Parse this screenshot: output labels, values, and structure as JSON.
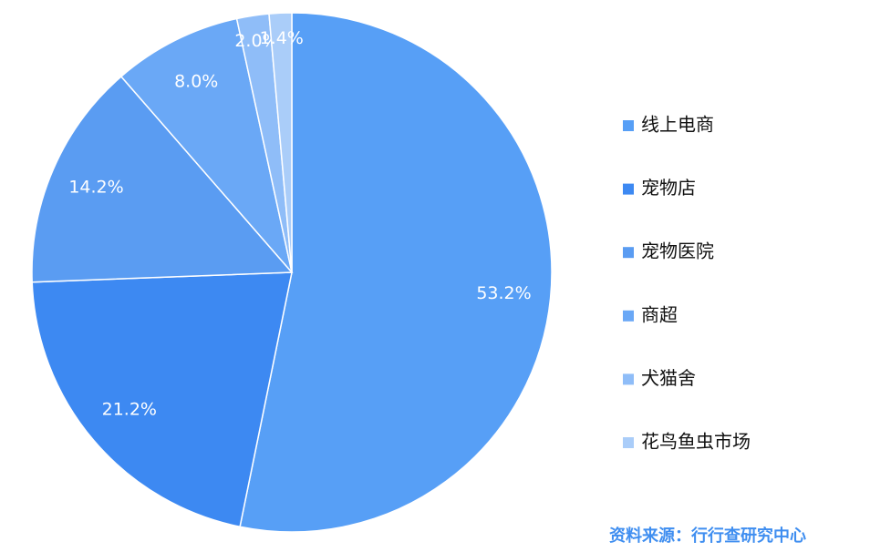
{
  "chart_data": {
    "type": "pie",
    "categories": [
      "线上电商",
      "宠物店",
      "宠物医院",
      "商超",
      "犬猫舍",
      "花鸟鱼虫市场"
    ],
    "values": [
      53.2,
      21.2,
      14.2,
      8.0,
      2.0,
      1.4
    ],
    "value_labels": [
      "53.2%",
      "21.2%",
      "14.2%",
      "8.0%",
      "2.0%",
      "1.4%"
    ],
    "colors": [
      "#579ff6",
      "#3d89f2",
      "#5a9cf2",
      "#6aa8f6",
      "#8fbdf8",
      "#aacdf9"
    ],
    "legend": "right",
    "source": "资料来源：行行查研究中心"
  }
}
